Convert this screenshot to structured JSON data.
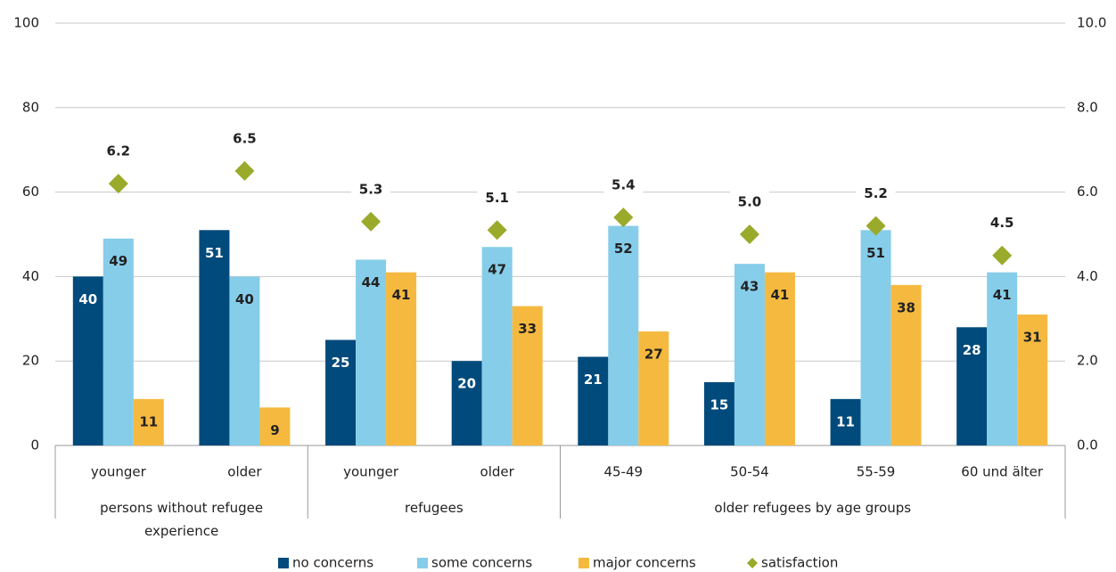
{
  "chart_data": {
    "type": "bar",
    "categories": [
      "younger",
      "older",
      "younger",
      "older",
      "45-49",
      "50-54",
      "55-59",
      "60 und älter"
    ],
    "groups": [
      {
        "label": "persons without refugee experience",
        "count": 2
      },
      {
        "label": "refugees",
        "count": 2
      },
      {
        "label": "older refugees by age groups",
        "count": 4
      }
    ],
    "series": [
      {
        "name": "no concerns",
        "color": "#004a7c",
        "values": [
          40,
          51,
          25,
          20,
          21,
          15,
          11,
          28
        ]
      },
      {
        "name": "some concerns",
        "color": "#86cdea",
        "values": [
          49,
          40,
          44,
          47,
          52,
          43,
          51,
          41
        ]
      },
      {
        "name": "major concerns",
        "color": "#f6b93f",
        "values": [
          11,
          9,
          41,
          33,
          27,
          41,
          38,
          31
        ]
      },
      {
        "name": "satisfaction",
        "color": "#9aaa2a",
        "type": "scatter",
        "axis": "y2",
        "values": [
          6.2,
          6.5,
          5.3,
          5.1,
          5.4,
          5.0,
          5.2,
          4.5
        ],
        "value_labels": [
          "6.2",
          "6.5",
          "5.3",
          "5.1",
          "5.4",
          "5.0",
          "5.2",
          "4.5"
        ]
      }
    ],
    "ylim": [
      0,
      100
    ],
    "yticks": [
      0,
      20,
      40,
      60,
      80,
      100
    ],
    "y2lim": [
      0,
      10
    ],
    "y2ticks": [
      {
        "value": 0,
        "label": "0.0"
      },
      {
        "value": 2,
        "label": "2.0"
      },
      {
        "value": 4,
        "label": "4.0"
      },
      {
        "value": 6,
        "label": "6.0"
      },
      {
        "value": 8,
        "label": "8.0"
      },
      {
        "value": 10,
        "label": "10.0"
      }
    ],
    "grid": true,
    "legend": "bottom"
  }
}
